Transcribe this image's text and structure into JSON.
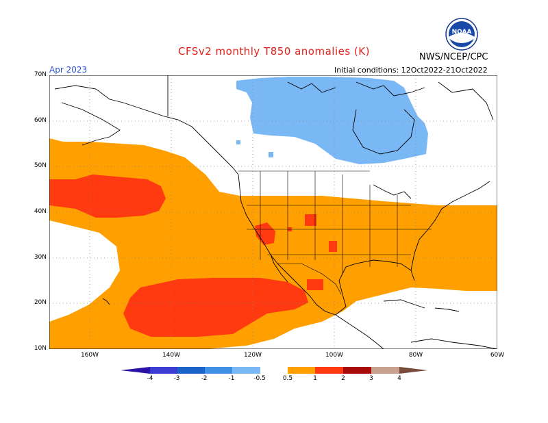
{
  "title": "CFSv2 monthly T850 anomalies (K)",
  "org": "NWS/NCEP/CPC",
  "month": "Apr 2023",
  "initial_conditions": "Initial conditions: 12Oct2022-21Oct2022",
  "logo_text": "NOAA",
  "lat_labels": [
    "70N",
    "60N",
    "50N",
    "40N",
    "30N",
    "20N",
    "10N"
  ],
  "lon_labels": [
    "160W",
    "140W",
    "120W",
    "100W",
    "80W",
    "60W"
  ],
  "colorbar": {
    "labels": [
      "-4",
      "-3",
      "-2",
      "-1",
      "-0.5",
      "0.5",
      "1",
      "2",
      "3",
      "4"
    ],
    "colors": [
      "#2a12a8",
      "#3b3cd1",
      "#1b63c9",
      "#3f91e6",
      "#7ab8f5",
      "#ffffff",
      "#ffa000",
      "#ff3a10",
      "#a80a0a",
      "#c8a090",
      "#7a4a3a"
    ]
  }
}
